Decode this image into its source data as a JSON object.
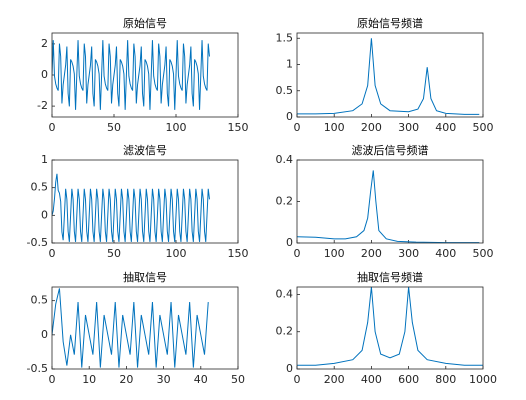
{
  "chart_data": [
    {
      "type": "line",
      "title": "原始信号",
      "color": "#0072bd",
      "x": [
        0,
        1,
        2,
        3,
        4,
        5,
        6,
        7,
        8,
        9,
        10,
        11,
        12,
        13,
        14,
        15,
        16,
        17,
        18,
        19,
        20,
        21,
        22,
        23,
        24,
        25,
        26,
        27,
        28,
        29,
        30,
        31,
        32,
        33,
        34,
        35,
        36,
        37,
        38,
        39,
        40,
        41,
        42,
        43,
        44,
        45,
        46,
        47,
        48,
        49,
        50,
        51,
        52,
        53,
        54,
        55,
        56,
        57,
        58,
        59,
        60,
        61,
        62,
        63,
        64,
        65,
        66,
        67,
        68,
        69,
        70,
        71,
        72,
        73,
        74,
        75,
        76,
        77,
        78,
        79,
        80,
        81,
        82,
        83,
        84,
        85,
        86,
        87,
        88,
        89,
        90,
        91,
        92,
        93,
        94,
        95,
        96,
        97,
        98,
        99,
        100,
        101,
        102,
        103,
        104,
        105,
        106,
        107,
        108,
        109,
        110,
        111,
        112,
        113,
        114,
        115,
        116,
        117,
        118,
        119,
        120,
        121,
        122,
        123,
        124,
        125,
        126,
        127
      ],
      "values": [
        0,
        2.24,
        -0.07,
        -0.57,
        -0.84,
        -1,
        2.02,
        1.19,
        -1.83,
        -0.62,
        0,
        0.62,
        1.83,
        -1.19,
        -2.02,
        1,
        0.84,
        0.57,
        0.07,
        -2.24,
        0,
        2.24,
        -0.07,
        -0.57,
        -0.84,
        -1,
        2.02,
        1.19,
        -1.83,
        -0.62,
        0,
        0.62,
        1.83,
        -1.19,
        -2.02,
        1,
        0.84,
        0.57,
        0.07,
        -2.24,
        0,
        2.24,
        -0.07,
        -0.57,
        -0.84,
        -1,
        2.02,
        1.19,
        -1.83,
        -0.62,
        0,
        0.62,
        1.83,
        -1.19,
        -2.02,
        1,
        0.84,
        0.57,
        0.07,
        -2.24,
        0,
        2.24,
        -0.07,
        -0.57,
        -0.84,
        -1,
        2.02,
        1.19,
        -1.83,
        -0.62,
        0,
        0.62,
        1.83,
        -1.19,
        -2.02,
        1,
        0.84,
        0.57,
        0.07,
        -2.24,
        0,
        2.24,
        -0.07,
        -0.57,
        -0.84,
        -1,
        2.02,
        1.19,
        -1.83,
        -0.62,
        0,
        0.62,
        1.83,
        -1.19,
        -2.02,
        1,
        0.84,
        0.57,
        0.07,
        -2.24,
        0,
        2.24,
        -0.07,
        -0.57,
        -0.84,
        -1,
        2.02,
        1.19,
        -1.83,
        -0.62,
        0,
        0.62,
        1.83,
        -1.19,
        -2.02,
        1,
        0.84,
        0.57,
        0.07,
        -2.24,
        0,
        2.24,
        -0.07,
        -0.57,
        -0.84,
        -1,
        2.02,
        1.19
      ],
      "xlim": [
        0,
        150
      ],
      "xticks": [
        0,
        50,
        100,
        150
      ],
      "ylim": [
        -2.7,
        2.7
      ],
      "yticks": [
        -2,
        0,
        2
      ]
    },
    {
      "type": "line",
      "title": "原始信号频谱",
      "color": "#0072bd",
      "x": [
        0,
        50,
        100,
        150,
        175,
        190,
        200,
        210,
        225,
        250,
        300,
        325,
        340,
        350,
        360,
        375,
        400,
        450,
        490
      ],
      "values": [
        0.06,
        0.06,
        0.07,
        0.12,
        0.25,
        0.6,
        1.5,
        0.6,
        0.25,
        0.12,
        0.1,
        0.15,
        0.35,
        0.95,
        0.35,
        0.12,
        0.07,
        0.05,
        0.05
      ],
      "xlim": [
        0,
        500
      ],
      "xticks": [
        0,
        100,
        200,
        300,
        400,
        500
      ],
      "ylim": [
        0,
        1.6
      ],
      "yticks": [
        0,
        0.5,
        1,
        1.5
      ]
    },
    {
      "type": "line",
      "title": "滤波信号",
      "color": "#0072bd",
      "x": [
        0,
        1,
        2,
        3,
        4,
        5,
        6,
        7,
        8,
        9,
        10,
        11,
        12,
        13,
        14,
        15,
        16,
        17,
        18,
        19,
        20,
        21,
        22,
        23,
        24,
        25,
        26,
        27,
        28,
        29,
        30,
        31,
        32,
        33,
        34,
        35,
        36,
        37,
        38,
        39,
        40,
        41,
        42,
        43,
        44,
        45,
        46,
        47,
        48,
        49,
        50,
        51,
        52,
        53,
        54,
        55,
        56,
        57,
        58,
        59,
        60,
        61,
        62,
        63,
        64,
        65,
        66,
        67,
        68,
        69,
        70,
        71,
        72,
        73,
        74,
        75,
        76,
        77,
        78,
        79,
        80,
        81,
        82,
        83,
        84,
        85,
        86,
        87,
        88,
        89,
        90,
        91,
        92,
        93,
        94,
        95,
        96,
        97,
        98,
        99,
        100,
        101,
        102,
        103,
        104,
        105,
        106,
        107,
        108,
        109,
        110,
        111,
        112,
        113,
        114,
        115,
        116,
        117,
        118,
        119,
        120,
        121,
        122,
        123,
        124,
        125,
        126,
        127
      ],
      "values": [
        0,
        0.08,
        0.3,
        0.6,
        0.75,
        0.45,
        0.4,
        0.25,
        -0.3,
        -0.45,
        0,
        0.48,
        0.29,
        -0.29,
        -0.48,
        0,
        0.48,
        0.29,
        -0.29,
        -0.48,
        0,
        0.48,
        0.29,
        -0.29,
        -0.48,
        0,
        0.48,
        0.29,
        -0.29,
        -0.48,
        0,
        0.48,
        0.29,
        -0.29,
        -0.48,
        0,
        0.48,
        0.29,
        -0.29,
        -0.48,
        0,
        0.48,
        0.29,
        -0.29,
        -0.48,
        0,
        0.48,
        0.29,
        -0.29,
        -0.48,
        0,
        0.48,
        0.29,
        -0.29,
        -0.48,
        0,
        0.48,
        0.29,
        -0.29,
        -0.48,
        0,
        0.48,
        0.29,
        -0.29,
        -0.48,
        0,
        0.48,
        0.29,
        -0.29,
        -0.48,
        0,
        0.48,
        0.29,
        -0.29,
        -0.48,
        0,
        0.48,
        0.29,
        -0.29,
        -0.48,
        0,
        0.48,
        0.29,
        -0.29,
        -0.48,
        0,
        0.48,
        0.29,
        -0.29,
        -0.48,
        0,
        0.48,
        0.29,
        -0.29,
        -0.48,
        0,
        0.48,
        0.29,
        -0.29,
        -0.48,
        0,
        0.48,
        0.29,
        -0.29,
        -0.48,
        0,
        0.48,
        0.29,
        -0.29,
        -0.48,
        0,
        0.48,
        0.29,
        -0.29,
        -0.48,
        0,
        0.48,
        0.29,
        -0.29,
        -0.48,
        0,
        0.48,
        0.29,
        -0.29,
        -0.48,
        0,
        0.48,
        0.29
      ],
      "xlim": [
        0,
        150
      ],
      "xticks": [
        0,
        50,
        100,
        150
      ],
      "ylim": [
        -0.5,
        1
      ],
      "yticks": [
        -0.5,
        0,
        0.5,
        1
      ]
    },
    {
      "type": "line",
      "title": "滤波后信号频谱",
      "color": "#0072bd",
      "x": [
        0,
        50,
        100,
        130,
        160,
        180,
        190,
        198,
        205,
        212,
        220,
        240,
        270,
        320,
        400,
        490
      ],
      "values": [
        0.03,
        0.028,
        0.02,
        0.02,
        0.03,
        0.06,
        0.12,
        0.25,
        0.35,
        0.2,
        0.06,
        0.02,
        0.008,
        0.004,
        0.002,
        0.002
      ],
      "xlim": [
        0,
        500
      ],
      "xticks": [
        0,
        100,
        200,
        300,
        400,
        500
      ],
      "ylim": [
        0,
        0.4
      ],
      "yticks": [
        0,
        0.2,
        0.4
      ]
    },
    {
      "type": "line",
      "title": "抽取信号",
      "color": "#0072bd",
      "x": [
        0,
        1,
        2,
        3,
        4,
        5,
        6,
        7,
        8,
        9,
        10,
        11,
        12,
        13,
        14,
        15,
        16,
        17,
        18,
        19,
        20,
        21,
        22,
        23,
        24,
        25,
        26,
        27,
        28,
        29,
        30,
        31,
        32,
        33,
        34,
        35,
        36,
        37,
        38,
        39,
        40,
        41,
        42
      ],
      "values": [
        0,
        0.45,
        0.68,
        -0.1,
        -0.45,
        0,
        -0.29,
        0.48,
        -0.48,
        0.29,
        0,
        -0.29,
        0.48,
        -0.48,
        0.29,
        0,
        -0.29,
        0.48,
        -0.48,
        0.29,
        0,
        -0.29,
        0.48,
        -0.48,
        0.29,
        0,
        -0.29,
        0.48,
        -0.48,
        0.29,
        0,
        -0.29,
        0.48,
        -0.48,
        0.29,
        0,
        -0.29,
        0.48,
        -0.48,
        0.29,
        0,
        -0.29,
        0.48
      ],
      "xlim": [
        0,
        50
      ],
      "xticks": [
        0,
        10,
        20,
        30,
        40,
        50
      ],
      "ylim": [
        -0.5,
        0.7
      ],
      "yticks": [
        -0.5,
        0,
        0.5
      ]
    },
    {
      "type": "line",
      "title": "抽取信号频谱",
      "color": "#0072bd",
      "x": [
        0,
        100,
        200,
        300,
        350,
        380,
        400,
        420,
        450,
        500,
        550,
        580,
        600,
        620,
        650,
        700,
        800,
        900,
        1000
      ],
      "values": [
        0.02,
        0.02,
        0.03,
        0.05,
        0.1,
        0.25,
        0.44,
        0.2,
        0.08,
        0.06,
        0.08,
        0.2,
        0.44,
        0.25,
        0.1,
        0.05,
        0.03,
        0.02,
        0.02
      ],
      "xlim": [
        0,
        1000
      ],
      "xticks": [
        0,
        200,
        400,
        600,
        800,
        1000
      ],
      "ylim": [
        0,
        0.44
      ],
      "yticks": [
        0,
        0.2,
        0.4
      ]
    }
  ]
}
